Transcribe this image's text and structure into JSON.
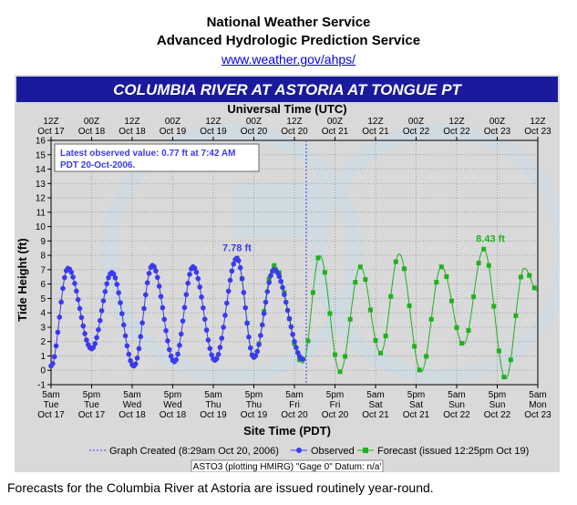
{
  "header": {
    "org": "National Weather Service",
    "service": "Advanced Hydrologic Prediction Service",
    "link": "www.weather.gov/ahps/"
  },
  "footer_note": "Forecasts for the Columbia River at Astoria are issued routinely year-round.",
  "colors": {
    "observed": "#3a3aee",
    "forecast": "#1fb01f",
    "banner": "#1a1a9c",
    "created_line": "#3a3aee"
  },
  "chart_data": {
    "type": "line",
    "title": "COLUMBIA RIVER  AT ASTORIA AT TONGUE PT",
    "top_axis_label": "Universal Time (UTC)",
    "top_ticks": [
      [
        "12Z",
        "Oct 17"
      ],
      [
        "00Z",
        "Oct 18"
      ],
      [
        "12Z",
        "Oct 18"
      ],
      [
        "00Z",
        "Oct 19"
      ],
      [
        "12Z",
        "Oct 19"
      ],
      [
        "00Z",
        "Oct 20"
      ],
      [
        "12Z",
        "Oct 20"
      ],
      [
        "00Z",
        "Oct 21"
      ],
      [
        "12Z",
        "Oct 21"
      ],
      [
        "00Z",
        "Oct 22"
      ],
      [
        "12Z",
        "Oct 22"
      ],
      [
        "00Z",
        "Oct 23"
      ],
      [
        "12Z",
        "Oct 23"
      ]
    ],
    "xlabel": "Site Time (PDT)",
    "bottom_ticks": [
      [
        "5am",
        "Tue",
        "Oct 17"
      ],
      [
        "5pm",
        "Tue",
        "Oct 17"
      ],
      [
        "5am",
        "Wed",
        "Oct 18"
      ],
      [
        "5pm",
        "Wed",
        "Oct 18"
      ],
      [
        "5am",
        "Thu",
        "Oct 19"
      ],
      [
        "5pm",
        "Thu",
        "Oct 19"
      ],
      [
        "5am",
        "Fri",
        "Oct 20"
      ],
      [
        "5pm",
        "Fri",
        "Oct 20"
      ],
      [
        "5am",
        "Sat",
        "Oct 21"
      ],
      [
        "5pm",
        "Sat",
        "Oct 21"
      ],
      [
        "5am",
        "Sun",
        "Oct 22"
      ],
      [
        "5pm",
        "Sun",
        "Oct 22"
      ],
      [
        "5am",
        "Mon",
        "Oct 23"
      ]
    ],
    "ylabel": "Tide Height (ft)",
    "ylim": [
      -1,
      16
    ],
    "yticks": [
      -1,
      0,
      1,
      2,
      3,
      4,
      5,
      6,
      7,
      8,
      9,
      10,
      11,
      12,
      13,
      14,
      15,
      16
    ],
    "x_unit": "hours after 5am PDT Oct 17",
    "xlim": [
      0,
      144
    ],
    "grid": true,
    "created_at": 75.5,
    "latest_observed": [
      "Latest observed value: 0.77 ft at 7:42 AM",
      "PDT 20-Oct-2006."
    ],
    "annotations": [
      {
        "text": "7.78 ft",
        "x": 55,
        "y": 7.78,
        "series": "observed"
      },
      {
        "text": "8.43 ft",
        "x": 130,
        "y": 8.43,
        "series": "forecast"
      }
    ],
    "legend": {
      "created": "Graph Created (8:29am Oct 20, 2006)",
      "observed": "Observed",
      "forecast": "Forecast (issued 12:25pm Oct 19)",
      "station": "ASTO3 (plotting HMIRG)  \"Gage 0\"  Datum: n/a'"
    },
    "series": [
      {
        "name": "Observed",
        "tide": [
          [
            0,
            0.3
          ],
          [
            5,
            7.1
          ],
          [
            12,
            1.5
          ],
          [
            18,
            6.8
          ],
          [
            24.5,
            0.3
          ],
          [
            30,
            7.3
          ],
          [
            36.5,
            0.6
          ],
          [
            42,
            7.2
          ],
          [
            48.5,
            0.7
          ],
          [
            55,
            7.8
          ],
          [
            60,
            0.9
          ],
          [
            66,
            7.0
          ],
          [
            74.5,
            0.77
          ]
        ]
      },
      {
        "name": "Forecast",
        "tide": [
          [
            55,
            7.8
          ],
          [
            60,
            0.9
          ],
          [
            66,
            7.3
          ],
          [
            74.5,
            0.5
          ],
          [
            79.5,
            8.0
          ],
          [
            85.5,
            -0.1
          ],
          [
            91.5,
            7.2
          ],
          [
            97.5,
            1.2
          ],
          [
            103,
            8.1
          ],
          [
            109.5,
            -0.1
          ],
          [
            115.5,
            7.2
          ],
          [
            122,
            1.8
          ],
          [
            128,
            8.43
          ],
          [
            134.5,
            -0.6
          ],
          [
            140,
            7.1
          ],
          [
            144,
            5.5
          ]
        ]
      }
    ]
  }
}
